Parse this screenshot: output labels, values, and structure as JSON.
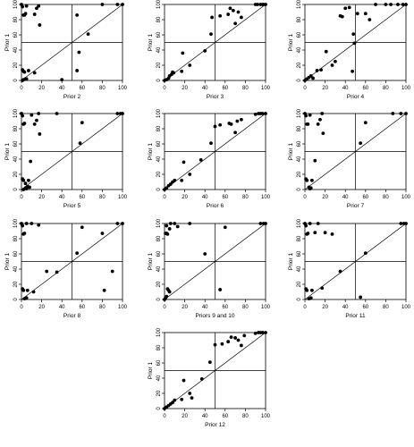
{
  "chart_data": [
    {
      "type": "scatter",
      "xlabel": "Prior 2",
      "ylabel": "Prior 1",
      "xlim": [
        0,
        100
      ],
      "ylim": [
        0,
        100
      ],
      "xticks": [
        0,
        20,
        40,
        60,
        80,
        100
      ],
      "yticks": [
        0,
        20,
        40,
        60,
        80,
        100
      ],
      "ref_lines": {
        "x": 50,
        "y": 50,
        "diagonal": true
      },
      "points": [
        [
          0,
          100
        ],
        [
          1,
          97
        ],
        [
          2,
          86
        ],
        [
          3,
          86
        ],
        [
          4,
          88
        ],
        [
          5,
          98
        ],
        [
          17,
          98
        ],
        [
          15,
          95
        ],
        [
          18,
          73
        ],
        [
          13,
          87
        ],
        [
          55,
          86
        ],
        [
          80,
          100
        ],
        [
          95,
          100
        ],
        [
          1,
          14
        ],
        [
          2,
          12
        ],
        [
          3,
          11
        ],
        [
          4,
          2
        ],
        [
          5,
          2
        ],
        [
          7,
          13
        ],
        [
          1,
          0
        ],
        [
          2,
          1
        ],
        [
          13,
          10
        ],
        [
          40,
          1
        ],
        [
          55,
          13
        ],
        [
          57,
          37
        ],
        [
          66,
          61
        ],
        [
          100,
          100
        ]
      ]
    },
    {
      "type": "scatter",
      "xlabel": "Prior 3",
      "ylabel": "Prior 1",
      "xlim": [
        0,
        100
      ],
      "ylim": [
        0,
        100
      ],
      "xticks": [
        0,
        20,
        40,
        60,
        80,
        100
      ],
      "yticks": [
        0,
        20,
        40,
        60,
        80,
        100
      ],
      "ref_lines": {
        "x": 50,
        "y": 50,
        "diagonal": true
      },
      "points": [
        [
          0,
          0
        ],
        [
          2,
          1
        ],
        [
          4,
          3
        ],
        [
          5,
          6
        ],
        [
          7,
          8
        ],
        [
          9,
          10
        ],
        [
          8,
          11
        ],
        [
          17,
          12
        ],
        [
          18,
          36
        ],
        [
          25,
          20
        ],
        [
          40,
          39
        ],
        [
          46,
          61
        ],
        [
          47,
          83
        ],
        [
          55,
          85
        ],
        [
          63,
          87
        ],
        [
          65,
          95
        ],
        [
          68,
          92
        ],
        [
          73,
          90
        ],
        [
          76,
          83
        ],
        [
          70,
          75
        ],
        [
          90,
          100
        ],
        [
          92,
          100
        ],
        [
          95,
          100
        ],
        [
          97,
          100
        ],
        [
          98,
          100
        ],
        [
          100,
          100
        ]
      ]
    },
    {
      "type": "scatter",
      "xlabel": "Prior 4",
      "ylabel": "Prior 1",
      "xlim": [
        0,
        100
      ],
      "ylim": [
        0,
        100
      ],
      "xticks": [
        0,
        20,
        40,
        60,
        80,
        100
      ],
      "yticks": [
        0,
        20,
        40,
        60,
        80,
        100
      ],
      "ref_lines": {
        "x": 50,
        "y": 50,
        "diagonal": true
      },
      "points": [
        [
          0,
          0
        ],
        [
          2,
          2
        ],
        [
          4,
          4
        ],
        [
          6,
          6
        ],
        [
          8,
          3
        ],
        [
          12,
          13
        ],
        [
          16,
          14
        ],
        [
          21,
          38
        ],
        [
          27,
          20
        ],
        [
          30,
          25
        ],
        [
          35,
          85
        ],
        [
          37,
          84
        ],
        [
          40,
          95
        ],
        [
          44,
          96
        ],
        [
          47,
          12
        ],
        [
          48,
          61
        ],
        [
          49,
          49
        ],
        [
          52,
          88
        ],
        [
          60,
          88
        ],
        [
          64,
          80
        ],
        [
          70,
          100
        ],
        [
          80,
          100
        ],
        [
          85,
          100
        ],
        [
          92,
          100
        ],
        [
          97,
          100
        ],
        [
          100,
          100
        ]
      ]
    },
    {
      "type": "scatter",
      "xlabel": "Prior 5",
      "ylabel": "Prior 1",
      "xlim": [
        0,
        100
      ],
      "ylim": [
        0,
        100
      ],
      "xticks": [
        0,
        20,
        40,
        60,
        80,
        100
      ],
      "yticks": [
        0,
        20,
        40,
        60,
        80,
        100
      ],
      "ref_lines": {
        "x": 50,
        "y": 50,
        "diagonal": true
      },
      "points": [
        [
          0,
          100
        ],
        [
          1,
          97
        ],
        [
          2,
          86
        ],
        [
          3,
          87
        ],
        [
          4,
          2
        ],
        [
          5,
          1
        ],
        [
          7,
          12
        ],
        [
          1,
          14
        ],
        [
          2,
          12
        ],
        [
          9,
          37
        ],
        [
          10,
          98
        ],
        [
          15,
          91
        ],
        [
          17,
          100
        ],
        [
          18,
          73
        ],
        [
          13,
          86
        ],
        [
          35,
          100
        ],
        [
          58,
          61
        ],
        [
          60,
          88
        ],
        [
          95,
          100
        ],
        [
          98,
          100
        ],
        [
          100,
          100
        ],
        [
          2,
          0
        ],
        [
          4,
          8
        ],
        [
          6,
          4
        ],
        [
          8,
          3
        ]
      ]
    },
    {
      "type": "scatter",
      "xlabel": "Prior 6",
      "ylabel": "Prior 1",
      "xlim": [
        0,
        100
      ],
      "ylim": [
        0,
        100
      ],
      "xticks": [
        0,
        20,
        40,
        60,
        80,
        100
      ],
      "yticks": [
        0,
        20,
        40,
        60,
        80,
        100
      ],
      "ref_lines": {
        "x": 50,
        "y": 50,
        "diagonal": true
      },
      "points": [
        [
          0,
          0
        ],
        [
          2,
          2
        ],
        [
          4,
          5
        ],
        [
          6,
          7
        ],
        [
          8,
          10
        ],
        [
          10,
          12
        ],
        [
          17,
          12
        ],
        [
          19,
          36
        ],
        [
          25,
          20
        ],
        [
          36,
          39
        ],
        [
          46,
          61
        ],
        [
          50,
          83
        ],
        [
          55,
          85
        ],
        [
          64,
          87
        ],
        [
          66,
          86
        ],
        [
          70,
          75
        ],
        [
          72,
          90
        ],
        [
          76,
          92
        ],
        [
          90,
          99
        ],
        [
          93,
          100
        ],
        [
          95,
          100
        ],
        [
          97,
          100
        ],
        [
          100,
          100
        ]
      ]
    },
    {
      "type": "scatter",
      "xlabel": "Prior 7",
      "ylabel": "Prior 1",
      "xlim": [
        0,
        100
      ],
      "ylim": [
        0,
        100
      ],
      "xticks": [
        0,
        20,
        40,
        60,
        80,
        100
      ],
      "yticks": [
        0,
        20,
        40,
        60,
        80,
        100
      ],
      "ref_lines": {
        "x": 50,
        "y": 50,
        "diagonal": true
      },
      "points": [
        [
          0,
          100
        ],
        [
          1,
          97
        ],
        [
          2,
          86
        ],
        [
          3,
          86
        ],
        [
          5,
          98
        ],
        [
          15,
          92
        ],
        [
          17,
          100
        ],
        [
          18,
          74
        ],
        [
          13,
          86
        ],
        [
          1,
          14
        ],
        [
          2,
          12
        ],
        [
          4,
          3
        ],
        [
          5,
          1
        ],
        [
          6,
          2
        ],
        [
          7,
          12
        ],
        [
          10,
          38
        ],
        [
          55,
          61
        ],
        [
          60,
          88
        ],
        [
          87,
          100
        ],
        [
          95,
          100
        ],
        [
          100,
          100
        ]
      ]
    },
    {
      "type": "scatter",
      "xlabel": "Prior 8",
      "ylabel": "Prior 1",
      "xlim": [
        0,
        100
      ],
      "ylim": [
        0,
        100
      ],
      "xticks": [
        0,
        20,
        40,
        60,
        80,
        100
      ],
      "yticks": [
        0,
        20,
        40,
        60,
        80,
        100
      ],
      "ref_lines": {
        "x": 50,
        "y": 50,
        "diagonal": true
      },
      "points": [
        [
          0,
          100
        ],
        [
          1,
          97
        ],
        [
          2,
          86
        ],
        [
          3,
          87
        ],
        [
          5,
          100
        ],
        [
          10,
          100
        ],
        [
          17,
          98
        ],
        [
          1,
          14
        ],
        [
          2,
          12
        ],
        [
          3,
          1
        ],
        [
          5,
          2
        ],
        [
          6,
          12
        ],
        [
          12,
          10
        ],
        [
          25,
          37
        ],
        [
          35,
          36
        ],
        [
          55,
          61
        ],
        [
          60,
          95
        ],
        [
          80,
          87
        ],
        [
          82,
          12
        ],
        [
          90,
          37
        ],
        [
          95,
          100
        ],
        [
          100,
          100
        ]
      ]
    },
    {
      "type": "scatter",
      "xlabel": "Priors 9 and 10",
      "ylabel": "Prior 1",
      "xlim": [
        0,
        100
      ],
      "ylim": [
        0,
        100
      ],
      "xticks": [
        0,
        20,
        40,
        60,
        80,
        100
      ],
      "yticks": [
        0,
        20,
        40,
        60,
        80,
        100
      ],
      "ref_lines": {
        "x": 50,
        "y": 50,
        "diagonal": true
      },
      "points": [
        [
          0,
          0
        ],
        [
          1,
          2
        ],
        [
          2,
          4
        ],
        [
          3,
          14
        ],
        [
          4,
          12
        ],
        [
          5,
          10
        ],
        [
          1,
          87
        ],
        [
          2,
          97
        ],
        [
          3,
          86
        ],
        [
          5,
          93
        ],
        [
          6,
          100
        ],
        [
          10,
          100
        ],
        [
          13,
          96
        ],
        [
          25,
          100
        ],
        [
          40,
          60
        ],
        [
          55,
          13
        ],
        [
          60,
          95
        ],
        [
          95,
          100
        ],
        [
          98,
          100
        ],
        [
          100,
          100
        ],
        [
          2,
          87
        ]
      ]
    },
    {
      "type": "scatter",
      "xlabel": "Prior 11",
      "ylabel": "Prior 1",
      "xlim": [
        0,
        100
      ],
      "ylim": [
        0,
        100
      ],
      "xticks": [
        0,
        20,
        40,
        60,
        80,
        100
      ],
      "yticks": [
        0,
        20,
        40,
        60,
        80,
        100
      ],
      "ref_lines": {
        "x": 50,
        "y": 50,
        "diagonal": true
      },
      "points": [
        [
          0,
          100
        ],
        [
          1,
          97
        ],
        [
          2,
          86
        ],
        [
          3,
          87
        ],
        [
          5,
          100
        ],
        [
          10,
          88
        ],
        [
          13,
          100
        ],
        [
          20,
          88
        ],
        [
          27,
          86
        ],
        [
          1,
          14
        ],
        [
          2,
          12
        ],
        [
          4,
          1
        ],
        [
          6,
          2
        ],
        [
          7,
          12
        ],
        [
          17,
          15
        ],
        [
          35,
          37
        ],
        [
          55,
          3
        ],
        [
          60,
          61
        ],
        [
          95,
          100
        ],
        [
          98,
          100
        ],
        [
          100,
          100
        ]
      ]
    },
    {
      "type": "scatter",
      "xlabel": "Prior 12",
      "ylabel": "Prior 1",
      "xlim": [
        0,
        100
      ],
      "ylim": [
        0,
        100
      ],
      "xticks": [
        0,
        20,
        40,
        60,
        80,
        100
      ],
      "yticks": [
        0,
        20,
        40,
        60,
        80,
        100
      ],
      "ref_lines": {
        "x": 50,
        "y": 50,
        "diagonal": true
      },
      "points": [
        [
          0,
          0
        ],
        [
          2,
          2
        ],
        [
          4,
          4
        ],
        [
          6,
          6
        ],
        [
          8,
          8
        ],
        [
          10,
          11
        ],
        [
          17,
          12
        ],
        [
          19,
          37
        ],
        [
          25,
          20
        ],
        [
          27,
          14
        ],
        [
          37,
          39
        ],
        [
          45,
          61
        ],
        [
          50,
          84
        ],
        [
          57,
          85
        ],
        [
          63,
          88
        ],
        [
          66,
          94
        ],
        [
          70,
          93
        ],
        [
          73,
          90
        ],
        [
          76,
          83
        ],
        [
          79,
          96
        ],
        [
          90,
          99
        ],
        [
          93,
          100
        ],
        [
          95,
          100
        ],
        [
          97,
          100
        ],
        [
          100,
          100
        ]
      ]
    }
  ]
}
